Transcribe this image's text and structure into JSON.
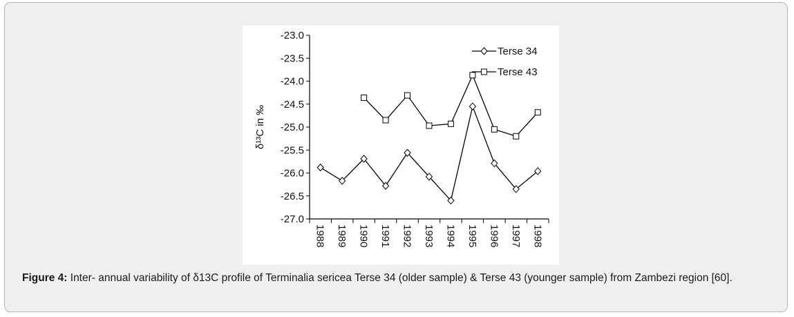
{
  "chart_data": {
    "type": "line",
    "title": "",
    "xlabel": "",
    "ylabel": "δ¹³C in ‰",
    "x": [
      "1988",
      "1989",
      "1990",
      "1991",
      "1992",
      "1993",
      "1994",
      "1995",
      "1996",
      "1997",
      "1998"
    ],
    "ylim": [
      -27.0,
      -23.0
    ],
    "yticks": [
      -23.0,
      -23.5,
      -24.0,
      -24.5,
      -25.0,
      -25.5,
      -26.0,
      -26.5,
      -27.0
    ],
    "ytick_labels": [
      "-23.0",
      "-23.5",
      "-24.0",
      "-24.5",
      "-25.0",
      "-25.5",
      "-26.0",
      "-26.5",
      "-27.0"
    ],
    "grid": false,
    "legend_position": "top-right",
    "series": [
      {
        "name": "Terse 34",
        "marker": "diamond",
        "values": [
          -25.88,
          -26.17,
          -25.69,
          -26.28,
          -25.56,
          -26.08,
          -26.6,
          -24.55,
          -25.79,
          -26.35,
          -25.96
        ]
      },
      {
        "name": "Terse 43",
        "marker": "square",
        "values": [
          null,
          null,
          -24.36,
          -24.85,
          -24.31,
          -24.97,
          -24.93,
          -23.87,
          -25.05,
          -25.2,
          -24.68
        ]
      }
    ]
  },
  "caption": {
    "label": "Figure 4:",
    "text": " Inter- annual variability of δ13C profile of Terminalia sericea Terse 34 (older sample) & Terse 43 (younger sample) from Zambezi region [60]."
  }
}
